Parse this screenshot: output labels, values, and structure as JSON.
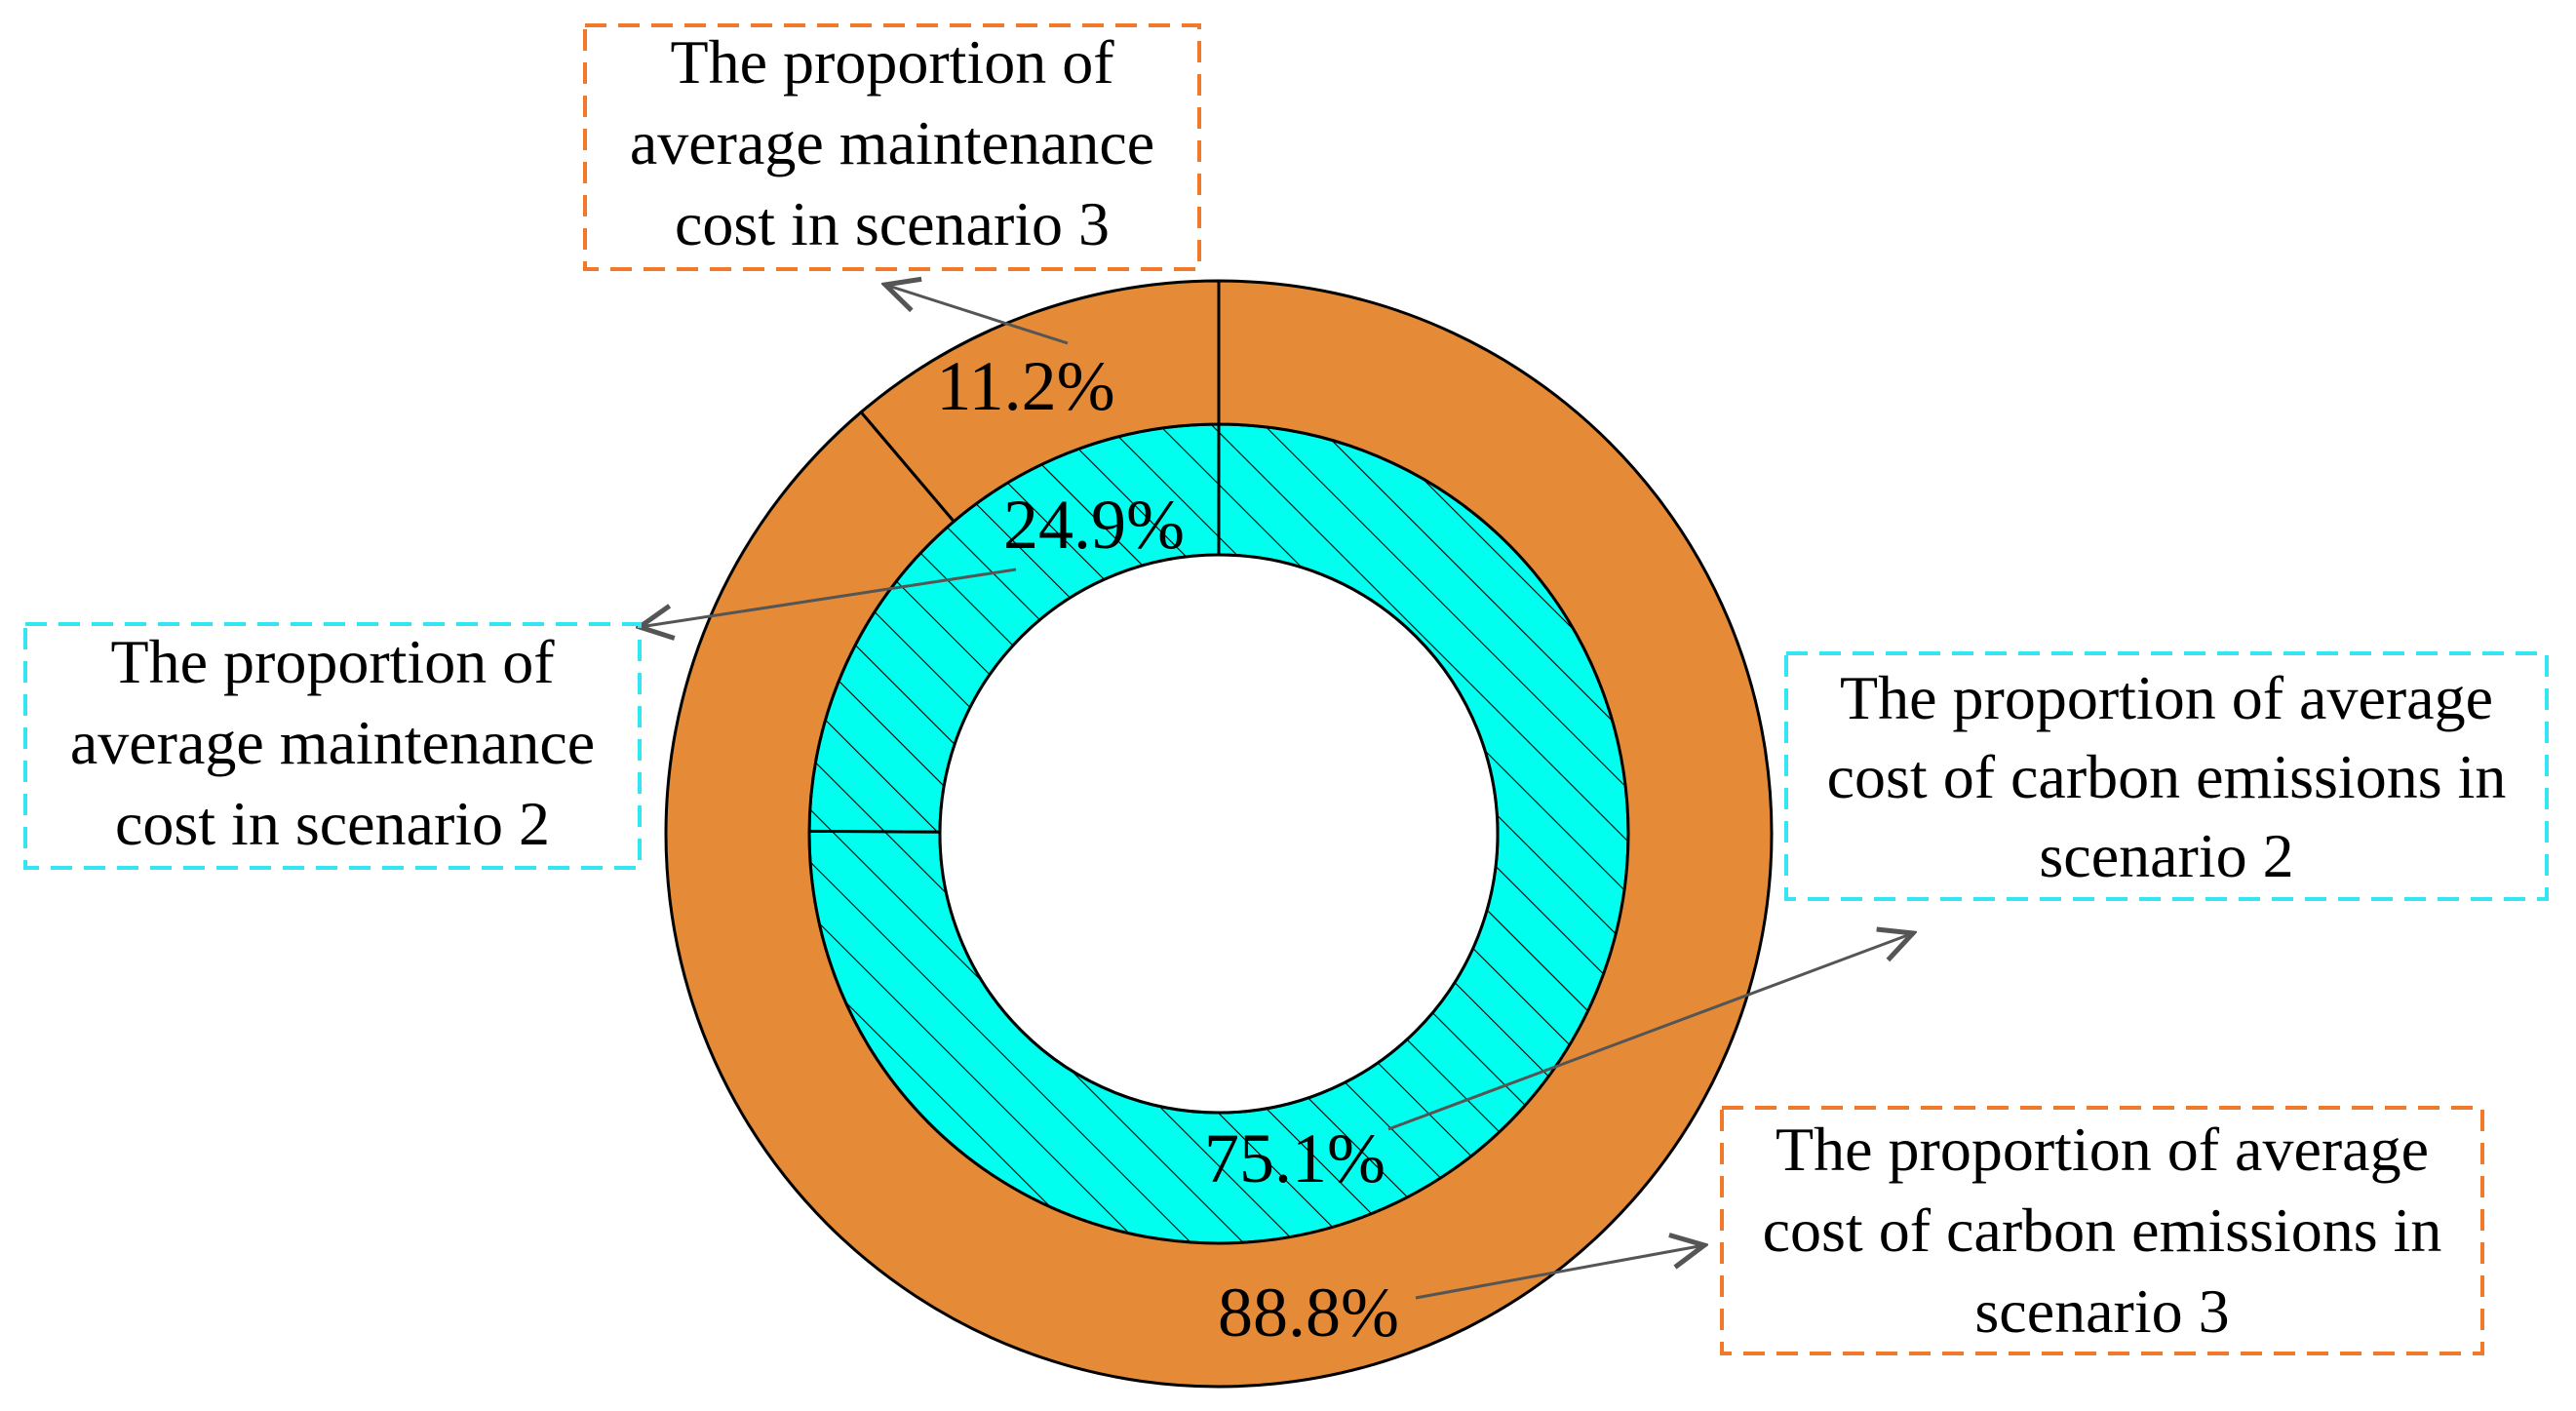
{
  "chart_data": {
    "type": "pie",
    "subtype": "nested-donut",
    "rings": [
      {
        "ring": "inner",
        "colors": {
          "fill": "#00ffee",
          "hatch": "#000000"
        },
        "slices": [
          {
            "value": 24.9,
            "label": "24.9%"
          },
          {
            "value": 75.1,
            "label": "75.1%"
          }
        ]
      },
      {
        "ring": "outer",
        "colors": {
          "fill": "#e58a36"
        },
        "slices": [
          {
            "value": 11.2,
            "label": "11.2%"
          },
          {
            "value": 88.8,
            "label": "88.8%"
          }
        ]
      }
    ],
    "annotations": [
      {
        "target": "outer-slice-0",
        "border": "#f07a2a",
        "lines": [
          "The proportion of",
          "average maintenance",
          "cost in  scenario 3"
        ]
      },
      {
        "target": "inner-slice-0",
        "border": "#33e6f2",
        "lines": [
          "The proportion of",
          "average maintenance",
          "cost in scenario 2"
        ]
      },
      {
        "target": "inner-slice-1",
        "border": "#33e6f2",
        "lines": [
          "The proportion of average",
          "cost of carbon emissions in",
          "scenario 2"
        ]
      },
      {
        "target": "outer-slice-1",
        "border": "#f07a2a",
        "lines": [
          "The proportion of average",
          "cost of carbon emissions in",
          "scenario 3"
        ]
      }
    ]
  }
}
